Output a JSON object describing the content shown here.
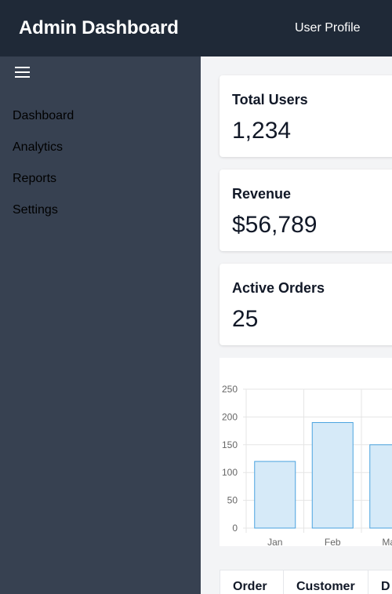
{
  "header": {
    "title": "Admin Dashboard",
    "profile_label": "User Profile"
  },
  "sidebar": {
    "toggle_icon": "hamburger-menu-icon",
    "items": [
      {
        "label": "Dashboard"
      },
      {
        "label": "Analytics"
      },
      {
        "label": "Reports"
      },
      {
        "label": "Settings"
      }
    ]
  },
  "stats": [
    {
      "title": "Total Users",
      "value": "1,234"
    },
    {
      "title": "Revenue",
      "value": "$56,789"
    },
    {
      "title": "Active Orders",
      "value": "25"
    }
  ],
  "chart_data": {
    "type": "bar",
    "categories": [
      "Jan",
      "Feb",
      "Mar"
    ],
    "series": [
      {
        "values": [
          120,
          190,
          150
        ]
      }
    ],
    "ylim": [
      0,
      250
    ],
    "yticks": [
      0,
      50,
      100,
      150,
      200,
      250
    ],
    "grid": true,
    "legend": "top",
    "colors": {
      "fill": "#d6eaf8",
      "stroke": "#4aa3df"
    }
  },
  "table": {
    "headers": [
      "Order",
      "Customer",
      "D"
    ]
  },
  "colors": {
    "header_bg": "#1f2937",
    "sidebar_bg": "#374151",
    "main_bg": "#f3f4f6"
  }
}
